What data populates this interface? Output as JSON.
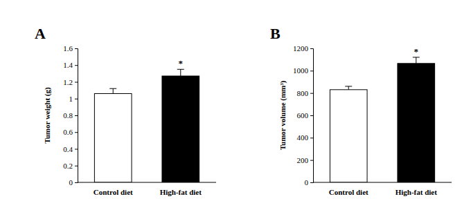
{
  "chart_data": [
    {
      "type": "bar",
      "title": "A",
      "y_label": "Tumor weight (g)",
      "categories": [
        "Control diet",
        "High-fat diet"
      ],
      "values": [
        1.06,
        1.27
      ],
      "errors": [
        0.06,
        0.08
      ],
      "colors": [
        "#ffffff",
        "#000000"
      ],
      "ylim": [
        0,
        1.6
      ],
      "yticks": [
        0,
        0.2,
        0.4,
        0.6,
        0.8,
        1,
        1.2,
        1.4,
        1.6
      ],
      "annotations": [
        {
          "text": "*",
          "category": "High-fat diet"
        }
      ]
    },
    {
      "type": "bar",
      "title": "B",
      "y_label": "Tumor volume (mm³)",
      "categories": [
        "Control diet",
        "High-fat diet"
      ],
      "values": [
        830,
        1065
      ],
      "errors": [
        30,
        55
      ],
      "colors": [
        "#ffffff",
        "#000000"
      ],
      "ylim": [
        0,
        1200
      ],
      "yticks": [
        0,
        200,
        400,
        600,
        800,
        1000,
        1200
      ],
      "annotations": [
        {
          "text": "*",
          "category": "High-fat diet"
        }
      ]
    }
  ]
}
